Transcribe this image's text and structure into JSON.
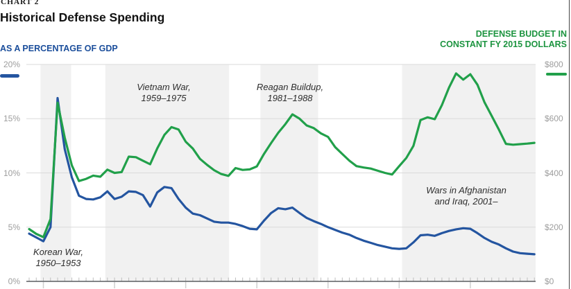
{
  "header": {
    "kicker": "CHART 2",
    "title": "Historical Defense Spending"
  },
  "axes": {
    "left_title": "AS A PERCENTAGE OF GDP",
    "right_title_line1": "DEFENSE BUDGET IN",
    "right_title_line2": "CONSTANT FY 2015 DOLLARS",
    "left_tick_labels": [
      "20%",
      "15%",
      "10%",
      "5%",
      "0%"
    ],
    "right_tick_labels": [
      "$800",
      "$600",
      "$400",
      "$200",
      "$0"
    ]
  },
  "annotations": {
    "korean": {
      "line1": "Korean War,",
      "line2": "1950–1953"
    },
    "vietnam": {
      "line1": "Vietnam War,",
      "line2": "1959–1975"
    },
    "reagan": {
      "line1": "Reagan Buildup,",
      "line2": "1981–1988"
    },
    "afghan": {
      "line1": "Wars in Afghanistan",
      "line2": "and Iraq, 2001–"
    }
  },
  "colors": {
    "blue_line": "#2455a0",
    "green_line": "#21a04a",
    "blue_label": "#1b4e9b",
    "green_label": "#1d9440",
    "grid": "#dadada",
    "band": "#f1f1f1",
    "axis_line": "#5a5d60",
    "tick_minor": "#bdbdbd",
    "tick_major": "#cfcfcf",
    "tick_label": "#9d9d9d"
  },
  "chart_data": {
    "type": "line",
    "title": "Historical Defense Spending",
    "x_label_visible": false,
    "x_range": [
      1947.6,
      2019.2
    ],
    "grid": true,
    "x": [
      1948,
      1949,
      1950,
      1951,
      1952,
      1953,
      1954,
      1955,
      1956,
      1957,
      1958,
      1959,
      1960,
      1961,
      1962,
      1963,
      1964,
      1965,
      1966,
      1967,
      1968,
      1969,
      1970,
      1971,
      1972,
      1973,
      1974,
      1975,
      1976,
      1977,
      1978,
      1979,
      1980,
      1981,
      1982,
      1983,
      1984,
      1985,
      1986,
      1987,
      1988,
      1989,
      1990,
      1991,
      1992,
      1993,
      1994,
      1995,
      1996,
      1997,
      1998,
      1999,
      2000,
      2001,
      2002,
      2003,
      2004,
      2005,
      2006,
      2007,
      2008,
      2009,
      2010,
      2011,
      2012,
      2013,
      2014,
      2015,
      2016,
      2017,
      2018,
      2019
    ],
    "series": [
      {
        "name": "As a percentage of GDP",
        "axis": "left",
        "color": "#2455a0",
        "values": [
          4.4,
          4.05,
          3.7,
          5.0,
          16.9,
          12.2,
          9.6,
          7.9,
          7.6,
          7.55,
          7.75,
          8.3,
          7.6,
          7.8,
          8.3,
          8.25,
          7.95,
          6.9,
          8.2,
          8.7,
          8.6,
          7.6,
          6.8,
          6.25,
          6.1,
          5.8,
          5.5,
          5.42,
          5.42,
          5.3,
          5.1,
          4.85,
          4.8,
          5.6,
          6.3,
          6.75,
          6.65,
          6.8,
          6.3,
          5.85,
          5.55,
          5.3,
          5.0,
          4.75,
          4.5,
          4.3,
          4.0,
          3.75,
          3.55,
          3.35,
          3.2,
          3.05,
          3.0,
          3.05,
          3.6,
          4.25,
          4.3,
          4.2,
          4.45,
          4.65,
          4.8,
          4.9,
          4.85,
          4.45,
          4.0,
          3.65,
          3.4,
          3.05,
          2.75,
          2.6,
          2.55,
          2.5
        ]
      },
      {
        "name": "Defense budget in constant FY 2015 dollars",
        "axis": "right",
        "color": "#21a04a",
        "values": [
          193,
          175,
          163,
          230,
          659,
          530,
          428,
          370,
          378,
          390,
          386,
          412,
          400,
          403,
          460,
          458,
          445,
          432,
          490,
          540,
          569,
          560,
          515,
          490,
          452,
          430,
          410,
          396,
          389,
          418,
          411,
          413,
          424,
          470,
          510,
          548,
          580,
          616,
          600,
          575,
          565,
          546,
          533,
          495,
          470,
          445,
          425,
          420,
          416,
          408,
          400,
          394,
          425,
          455,
          500,
          595,
          605,
          598,
          650,
          715,
          767,
          744,
          764,
          725,
          660,
          610,
          560,
          507,
          504,
          506,
          508,
          511
        ]
      }
    ],
    "left_axis": {
      "label": "As a percentage of GDP",
      "range": [
        0,
        20
      ],
      "ticks": [
        0,
        5,
        10,
        15,
        20
      ],
      "format": "percent"
    },
    "right_axis": {
      "label": "Defense budget in constant FY 2015 dollars ($B)",
      "range": [
        0,
        800
      ],
      "ticks": [
        0,
        200,
        400,
        600,
        800
      ],
      "format": "dollars_billions"
    },
    "decade_tick_years": [
      1950,
      1960,
      1970,
      1980,
      1990,
      2000,
      2010
    ],
    "bands": [
      {
        "name": "korean-war-band",
        "from": 1949.6,
        "to": 1953.9
      },
      {
        "name": "vietnam-war-band",
        "from": 1958.7,
        "to": 1976.1
      },
      {
        "name": "reagan-band",
        "from": 1980.5,
        "to": 1988.6
      },
      {
        "name": "afghan-iraq-band",
        "from": 2000.4,
        "to": 2019.2
      }
    ]
  }
}
